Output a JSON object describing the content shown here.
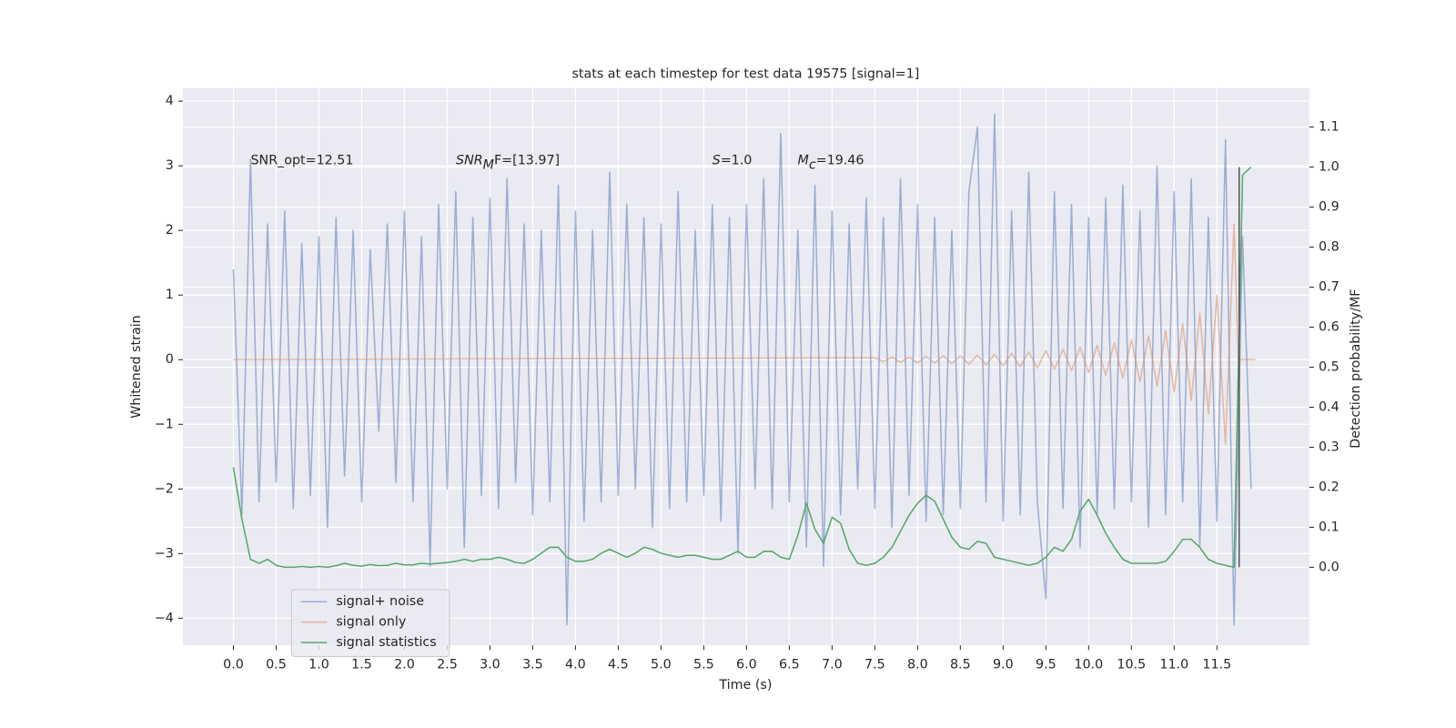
{
  "chart_data": {
    "type": "line",
    "title": "stats at each timestep for test data 19575 [signal=1]",
    "xlabel": "Time (s)",
    "ylabel": "Whitened strain",
    "y2label": "Detection probability/MF",
    "xlim": [
      -0.59,
      12.58
    ],
    "ylim": [
      -4.42,
      4.2
    ],
    "y2lim": [
      -0.195,
      1.197
    ],
    "grid": true,
    "legend": "lower left",
    "xticks": [
      {
        "value": 0,
        "label": "0.0"
      },
      {
        "value": 0.5,
        "label": "0.5"
      },
      {
        "value": 1,
        "label": "1.0"
      },
      {
        "value": 1.5,
        "label": "1.5"
      },
      {
        "value": 2,
        "label": "2.0"
      },
      {
        "value": 2.5,
        "label": "2.5"
      },
      {
        "value": 3,
        "label": "3.0"
      },
      {
        "value": 3.5,
        "label": "3.5"
      },
      {
        "value": 4,
        "label": "4.0"
      },
      {
        "value": 4.5,
        "label": "4.5"
      },
      {
        "value": 5,
        "label": "5.0"
      },
      {
        "value": 5.5,
        "label": "5.5"
      },
      {
        "value": 6,
        "label": "6.0"
      },
      {
        "value": 6.5,
        "label": "6.5"
      },
      {
        "value": 7,
        "label": "7.0"
      },
      {
        "value": 7.5,
        "label": "7.5"
      },
      {
        "value": 8,
        "label": "8.0"
      },
      {
        "value": 8.5,
        "label": "8.5"
      },
      {
        "value": 9,
        "label": "9.0"
      },
      {
        "value": 9.5,
        "label": "9.5"
      },
      {
        "value": 10,
        "label": "10.0"
      },
      {
        "value": 10.5,
        "label": "10.5"
      },
      {
        "value": 11,
        "label": "11.0"
      },
      {
        "value": 11.5,
        "label": "11.5"
      }
    ],
    "yticks": [
      {
        "value": -4,
        "label": "−4"
      },
      {
        "value": -3,
        "label": "−3"
      },
      {
        "value": -2,
        "label": "−2"
      },
      {
        "value": -1,
        "label": "−1"
      },
      0,
      1,
      2,
      3,
      4
    ],
    "y2ticks": [
      {
        "value": 0,
        "label": "0.0"
      },
      {
        "value": 0.1,
        "label": "0.1"
      },
      {
        "value": 0.2,
        "label": "0.2"
      },
      {
        "value": 0.3,
        "label": "0.3"
      },
      {
        "value": 0.4,
        "label": "0.4"
      },
      {
        "value": 0.5,
        "label": "0.5"
      },
      {
        "value": 0.6,
        "label": "0.6"
      },
      {
        "value": 0.7,
        "label": "0.7"
      },
      {
        "value": 0.8,
        "label": "0.8"
      },
      {
        "value": 0.9,
        "label": "0.9"
      },
      {
        "value": 1,
        "label": "1.0"
      },
      {
        "value": 1.1,
        "label": "1.1"
      }
    ],
    "annotations": [
      [
        {
          "text": "SNR_opt=12.51"
        }
      ],
      [
        {
          "text": "SNR",
          "italic": true
        },
        {
          "text": "M",
          "italic": true,
          "sub": true
        },
        {
          "text": "F=[13.97]"
        }
      ],
      [
        {
          "text": "S",
          "italic": true
        },
        {
          "text": "=1.0"
        }
      ],
      [
        {
          "text": "M",
          "italic": true
        },
        {
          "text": "c",
          "italic": true,
          "sub": true
        },
        {
          "text": "=19.46"
        }
      ]
    ],
    "x": [
      0.0,
      0.1,
      0.2,
      0.3,
      0.4,
      0.5,
      0.6,
      0.7,
      0.8,
      0.9,
      1.0,
      1.1,
      1.2,
      1.3,
      1.4,
      1.5,
      1.6,
      1.7,
      1.8,
      1.9,
      2.0,
      2.1,
      2.2,
      2.3,
      2.4,
      2.5,
      2.6,
      2.7,
      2.8,
      2.9,
      3.0,
      3.1,
      3.2,
      3.3,
      3.4,
      3.5,
      3.6,
      3.7,
      3.8,
      3.9,
      4.0,
      4.1,
      4.2,
      4.3,
      4.4,
      4.5,
      4.6,
      4.7,
      4.8,
      4.9,
      5.0,
      5.1,
      5.2,
      5.3,
      5.4,
      5.5,
      5.6,
      5.7,
      5.8,
      5.9,
      6.0,
      6.1,
      6.2,
      6.3,
      6.4,
      6.5,
      6.6,
      6.7,
      6.8,
      6.9,
      7.0,
      7.1,
      7.2,
      7.3,
      7.4,
      7.5,
      7.6,
      7.7,
      7.8,
      7.9,
      8.0,
      8.1,
      8.2,
      8.3,
      8.4,
      8.5,
      8.6,
      8.7,
      8.8,
      8.9,
      9.0,
      9.1,
      9.2,
      9.3,
      9.4,
      9.5,
      9.6,
      9.7,
      9.8,
      9.9,
      10.0,
      10.1,
      10.2,
      10.3,
      10.4,
      10.5,
      10.6,
      10.7,
      10.8,
      10.9,
      11.0,
      11.1,
      11.2,
      11.3,
      11.4,
      11.5,
      11.6,
      11.7,
      11.8,
      11.9
    ],
    "series": [
      {
        "name": "signal+ noise",
        "color": "#4c72b0",
        "alpha": 0.5,
        "values": [
          1.4,
          -2.4,
          3.1,
          -2.2,
          2.1,
          -1.9,
          2.3,
          -2.3,
          1.8,
          -2.1,
          1.9,
          -2.6,
          2.2,
          -1.8,
          2.0,
          -2.2,
          1.7,
          -1.1,
          2.1,
          -1.9,
          2.3,
          -2.2,
          1.9,
          -3.2,
          2.4,
          -2.0,
          2.6,
          -2.9,
          2.2,
          -2.1,
          2.5,
          -2.3,
          2.8,
          -1.9,
          2.1,
          -2.4,
          2.0,
          -2.2,
          2.7,
          -4.1,
          2.3,
          -2.5,
          2.0,
          -2.2,
          2.9,
          -2.1,
          2.4,
          -2.0,
          2.2,
          -2.6,
          2.1,
          -2.3,
          2.6,
          -2.2,
          2.0,
          -2.1,
          2.4,
          -2.5,
          2.2,
          -3.0,
          2.4,
          -2.0,
          2.8,
          -2.3,
          3.5,
          -2.2,
          2.0,
          -2.9,
          2.7,
          -3.2,
          2.3,
          -2.4,
          2.1,
          -2.0,
          2.5,
          -2.3,
          2.2,
          -2.6,
          2.8,
          -2.1,
          2.4,
          -2.5,
          2.2,
          -2.4,
          2.0,
          -2.3,
          2.6,
          3.6,
          -2.2,
          3.8,
          -2.5,
          2.3,
          -2.4,
          2.9,
          -2.2,
          -3.7,
          2.6,
          -2.3,
          2.4,
          -2.9,
          2.2,
          -2.4,
          2.5,
          -2.3,
          2.7,
          -2.2,
          2.3,
          -2.6,
          3.0,
          -2.4,
          2.6,
          -2.2,
          2.8,
          -2.9,
          2.2,
          -2.5,
          3.4,
          -4.1,
          1.9,
          -2.0
        ]
      },
      {
        "name": "signal only",
        "color": "#dd8452",
        "alpha": 0.5,
        "x": [
          0.0,
          7.5,
          7.6,
          7.7,
          7.8,
          7.9,
          8.0,
          8.1,
          8.2,
          8.3,
          8.4,
          8.5,
          8.6,
          8.7,
          8.8,
          8.9,
          9.0,
          9.1,
          9.2,
          9.3,
          9.4,
          9.5,
          9.6,
          9.7,
          9.8,
          9.9,
          10.0,
          10.1,
          10.2,
          10.3,
          10.4,
          10.5,
          10.6,
          10.7,
          10.8,
          10.9,
          11.0,
          11.1,
          11.2,
          11.3,
          11.4,
          11.5,
          11.6,
          11.7,
          11.75,
          11.95
        ],
        "values": [
          0,
          0.03,
          -0.03,
          0.04,
          -0.04,
          0.04,
          -0.05,
          0.05,
          -0.05,
          0.06,
          -0.06,
          0.06,
          -0.07,
          0.07,
          -0.08,
          0.08,
          -0.09,
          0.1,
          -0.11,
          0.12,
          -0.13,
          0.14,
          -0.15,
          0.16,
          -0.17,
          0.19,
          -0.2,
          0.22,
          -0.24,
          0.26,
          -0.28,
          0.31,
          -0.34,
          0.37,
          -0.41,
          0.45,
          -0.5,
          0.56,
          -0.63,
          0.72,
          -0.84,
          1.0,
          -1.3,
          2.1,
          0,
          0
        ]
      },
      {
        "name": "signal statistics",
        "color": "#55a868",
        "alpha": 1,
        "axis": "y2",
        "values": [
          0.25,
          0.12,
          0.02,
          0.01,
          0.02,
          0.005,
          0.0,
          0.0,
          0.002,
          0.0,
          0.002,
          0.0,
          0.004,
          0.01,
          0.005,
          0.003,
          0.007,
          0.004,
          0.005,
          0.01,
          0.006,
          0.006,
          0.01,
          0.008,
          0.01,
          0.012,
          0.015,
          0.02,
          0.015,
          0.02,
          0.02,
          0.025,
          0.02,
          0.012,
          0.01,
          0.02,
          0.035,
          0.05,
          0.05,
          0.025,
          0.015,
          0.015,
          0.02,
          0.035,
          0.045,
          0.035,
          0.025,
          0.035,
          0.05,
          0.045,
          0.035,
          0.03,
          0.025,
          0.03,
          0.03,
          0.025,
          0.02,
          0.02,
          0.03,
          0.04,
          0.025,
          0.025,
          0.04,
          0.04,
          0.025,
          0.02,
          0.08,
          0.16,
          0.095,
          0.06,
          0.125,
          0.11,
          0.045,
          0.01,
          0.005,
          0.01,
          0.025,
          0.05,
          0.09,
          0.13,
          0.16,
          0.18,
          0.165,
          0.12,
          0.075,
          0.05,
          0.045,
          0.065,
          0.06,
          0.025,
          0.02,
          0.015,
          0.01,
          0.005,
          0.01,
          0.025,
          0.05,
          0.04,
          0.07,
          0.14,
          0.17,
          0.13,
          0.085,
          0.05,
          0.02,
          0.01,
          0.01,
          0.01,
          0.01,
          0.015,
          0.04,
          0.07,
          0.07,
          0.05,
          0.02,
          0.01,
          0.005,
          0.0,
          0.98,
          1.0
        ]
      }
    ],
    "vlines": [
      {
        "x": 11.76,
        "ymin": 0.0,
        "ymax": 1.0,
        "axis": "y2",
        "color": "#555555"
      }
    ]
  }
}
